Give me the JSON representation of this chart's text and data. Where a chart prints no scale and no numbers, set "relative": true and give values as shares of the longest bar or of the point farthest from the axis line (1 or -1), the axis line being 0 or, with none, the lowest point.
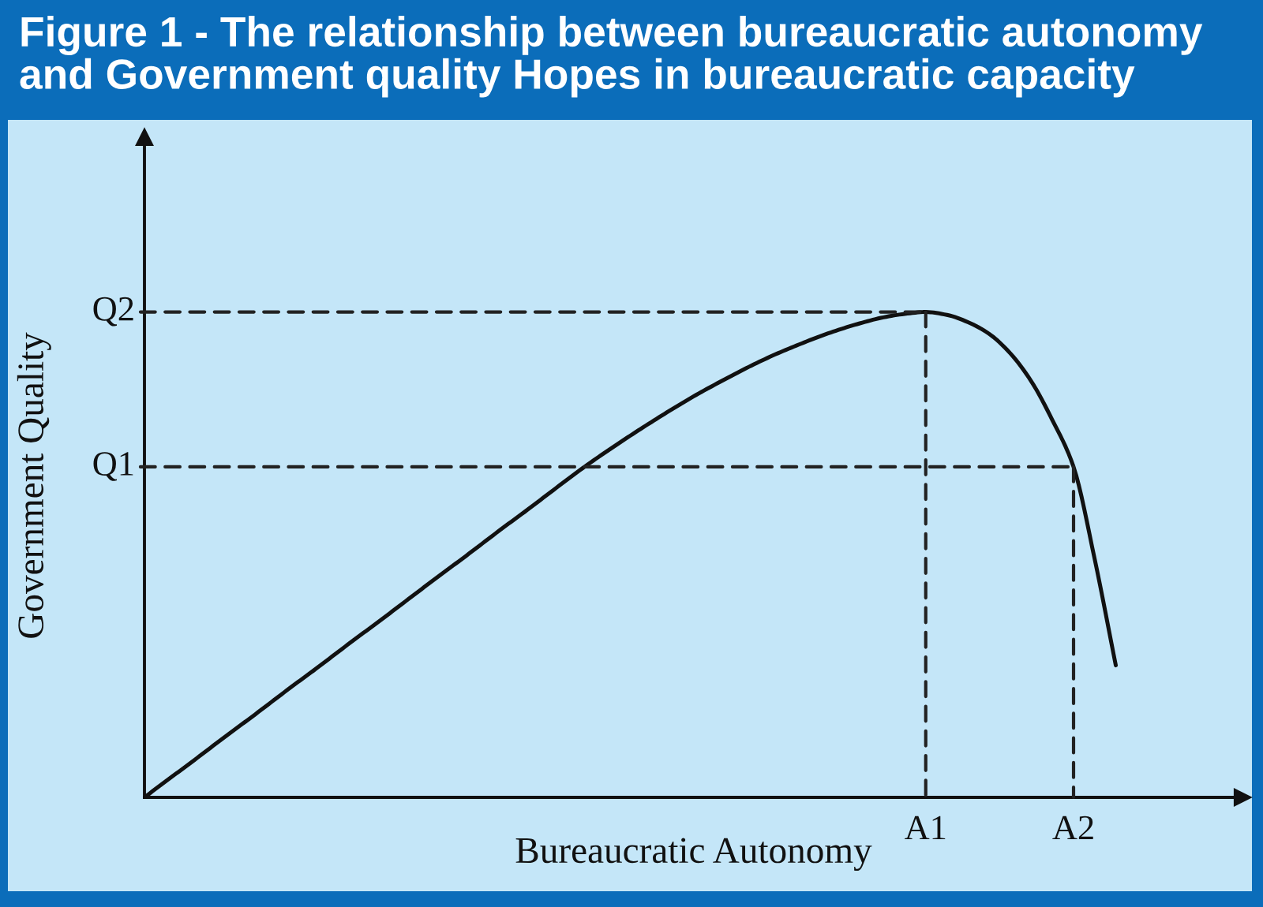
{
  "chart_data": {
    "type": "line",
    "title": "Figure 1 - The relationship between bureaucratic autonomy and Government quality Hopes in bureaucratic capacity",
    "xlabel": "Bureaucratic Autonomy",
    "ylabel": "Government Quality",
    "relative": true,
    "line_style": "solid",
    "categories": [
      null,
      null,
      null,
      null,
      null,
      null,
      null,
      null,
      null,
      null,
      null,
      null,
      null,
      null,
      null,
      null,
      null,
      null,
      null,
      null,
      null,
      null,
      null,
      null,
      null,
      null,
      null,
      null,
      null,
      null,
      null,
      null,
      null,
      null,
      null,
      null,
      null,
      "A1",
      null,
      null,
      null,
      null,
      null,
      null,
      "A2",
      null,
      null,
      null,
      null,
      null,
      null,
      null,
      null
    ],
    "series": [
      {
        "color": "#111111",
        "values": [
          0,
          0.033,
          0.065,
          0.098,
          0.131,
          0.163,
          0.196,
          0.229,
          0.261,
          0.294,
          0.327,
          0.359,
          0.392,
          0.425,
          0.458,
          0.49,
          0.523,
          0.556,
          0.588,
          0.621,
          0.654,
          0.686,
          0.716,
          0.745,
          0.773,
          0.8,
          0.826,
          0.85,
          0.873,
          0.895,
          0.915,
          0.933,
          0.95,
          0.965,
          0.978,
          0.989,
          0.996,
          1.0,
          0.994,
          0.979,
          0.955,
          0.915,
          0.857,
          0.777,
          0.681,
          0.491,
          0.272,
          null,
          null,
          null,
          null,
          null,
          null
        ]
      }
    ],
    "annotations": [
      {
        "text": "Q2",
        "x": "A1",
        "y": 1.0
      },
      {
        "text": "Q1",
        "x": "A2",
        "y": 0.681
      }
    ]
  }
}
